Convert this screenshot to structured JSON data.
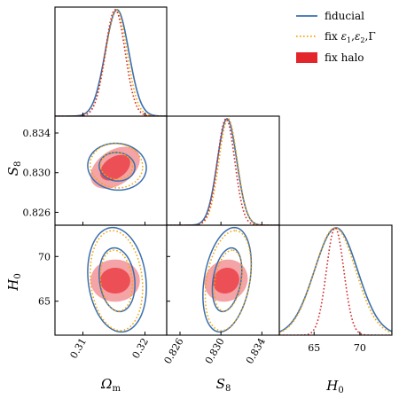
{
  "chart_data": {
    "type": "corner",
    "title": "",
    "parameters": [
      {
        "key": "om",
        "label": "Ωm",
        "label_main": "Ω",
        "label_sub": "m",
        "range": [
          0.3055,
          0.3235
        ],
        "ticks": [
          0.31,
          0.32
        ],
        "tick_labels": [
          "0.31",
          "0.32"
        ]
      },
      {
        "key": "s8",
        "label": "S8",
        "label_main": "S",
        "label_sub": "8",
        "range": [
          0.8247,
          0.8357
        ],
        "ticks": [
          0.826,
          0.83,
          0.834
        ],
        "tick_labels": [
          "0.826",
          "0.830",
          "0.834"
        ]
      },
      {
        "key": "h0",
        "label": "H0",
        "label_main": "H",
        "label_sub": "0",
        "range": [
          61.2,
          73.5
        ],
        "ticks": [
          65,
          70
        ],
        "tick_labels": [
          "65",
          "70"
        ]
      }
    ],
    "legend": {
      "placement": "top-right",
      "entries": [
        {
          "label": "fiducial",
          "style": "solid-line",
          "color": "#3a6fb0"
        },
        {
          "label": "fix ε1, ε2, Γ",
          "label_parts": [
            "fix ",
            "ε",
            "1",
            ",",
            "ε",
            "2",
            ",",
            "Γ"
          ],
          "style": "dotted-line",
          "color": "#f5a500"
        },
        {
          "label": "fix halo",
          "style": "filled-patch",
          "color": "#e2262c"
        }
      ]
    },
    "series": [
      {
        "name": "fiducial",
        "color": "#3a6fb0",
        "linestyle": "solid",
        "mean": {
          "om": 0.3155,
          "s8": 0.8306,
          "h0": 67.4
        },
        "sigma": {
          "om": 0.0019,
          "s8": 0.00095,
          "h0": 2.35
        },
        "corr": {
          "om_s8": -0.05,
          "om_h0": -0.15,
          "s8_h0": 0.3
        }
      },
      {
        "name": "fix ε1, ε2, Γ",
        "color": "#f5a500",
        "linestyle": "dotted",
        "mean": {
          "om": 0.3154,
          "s8": 0.8307,
          "h0": 67.3
        },
        "sigma": {
          "om": 0.0017,
          "s8": 0.0009,
          "h0": 2.25
        },
        "corr": {
          "om_s8": -0.05,
          "om_h0": -0.15,
          "s8_h0": 0.3
        }
      },
      {
        "name": "fix halo",
        "color": "#e2262c",
        "linestyle": "filled",
        "mean": {
          "om": 0.3152,
          "s8": 0.8305,
          "h0": 67.3
        },
        "sigma": {
          "om": 0.0016,
          "s8": 0.00085,
          "h0": 0.95
        },
        "corr": {
          "om_s8": 0.4,
          "om_h0": 0.0,
          "s8_h0": 0.1
        }
      }
    ],
    "contour_levels": [
      "68%",
      "95%"
    ],
    "grid": false
  }
}
